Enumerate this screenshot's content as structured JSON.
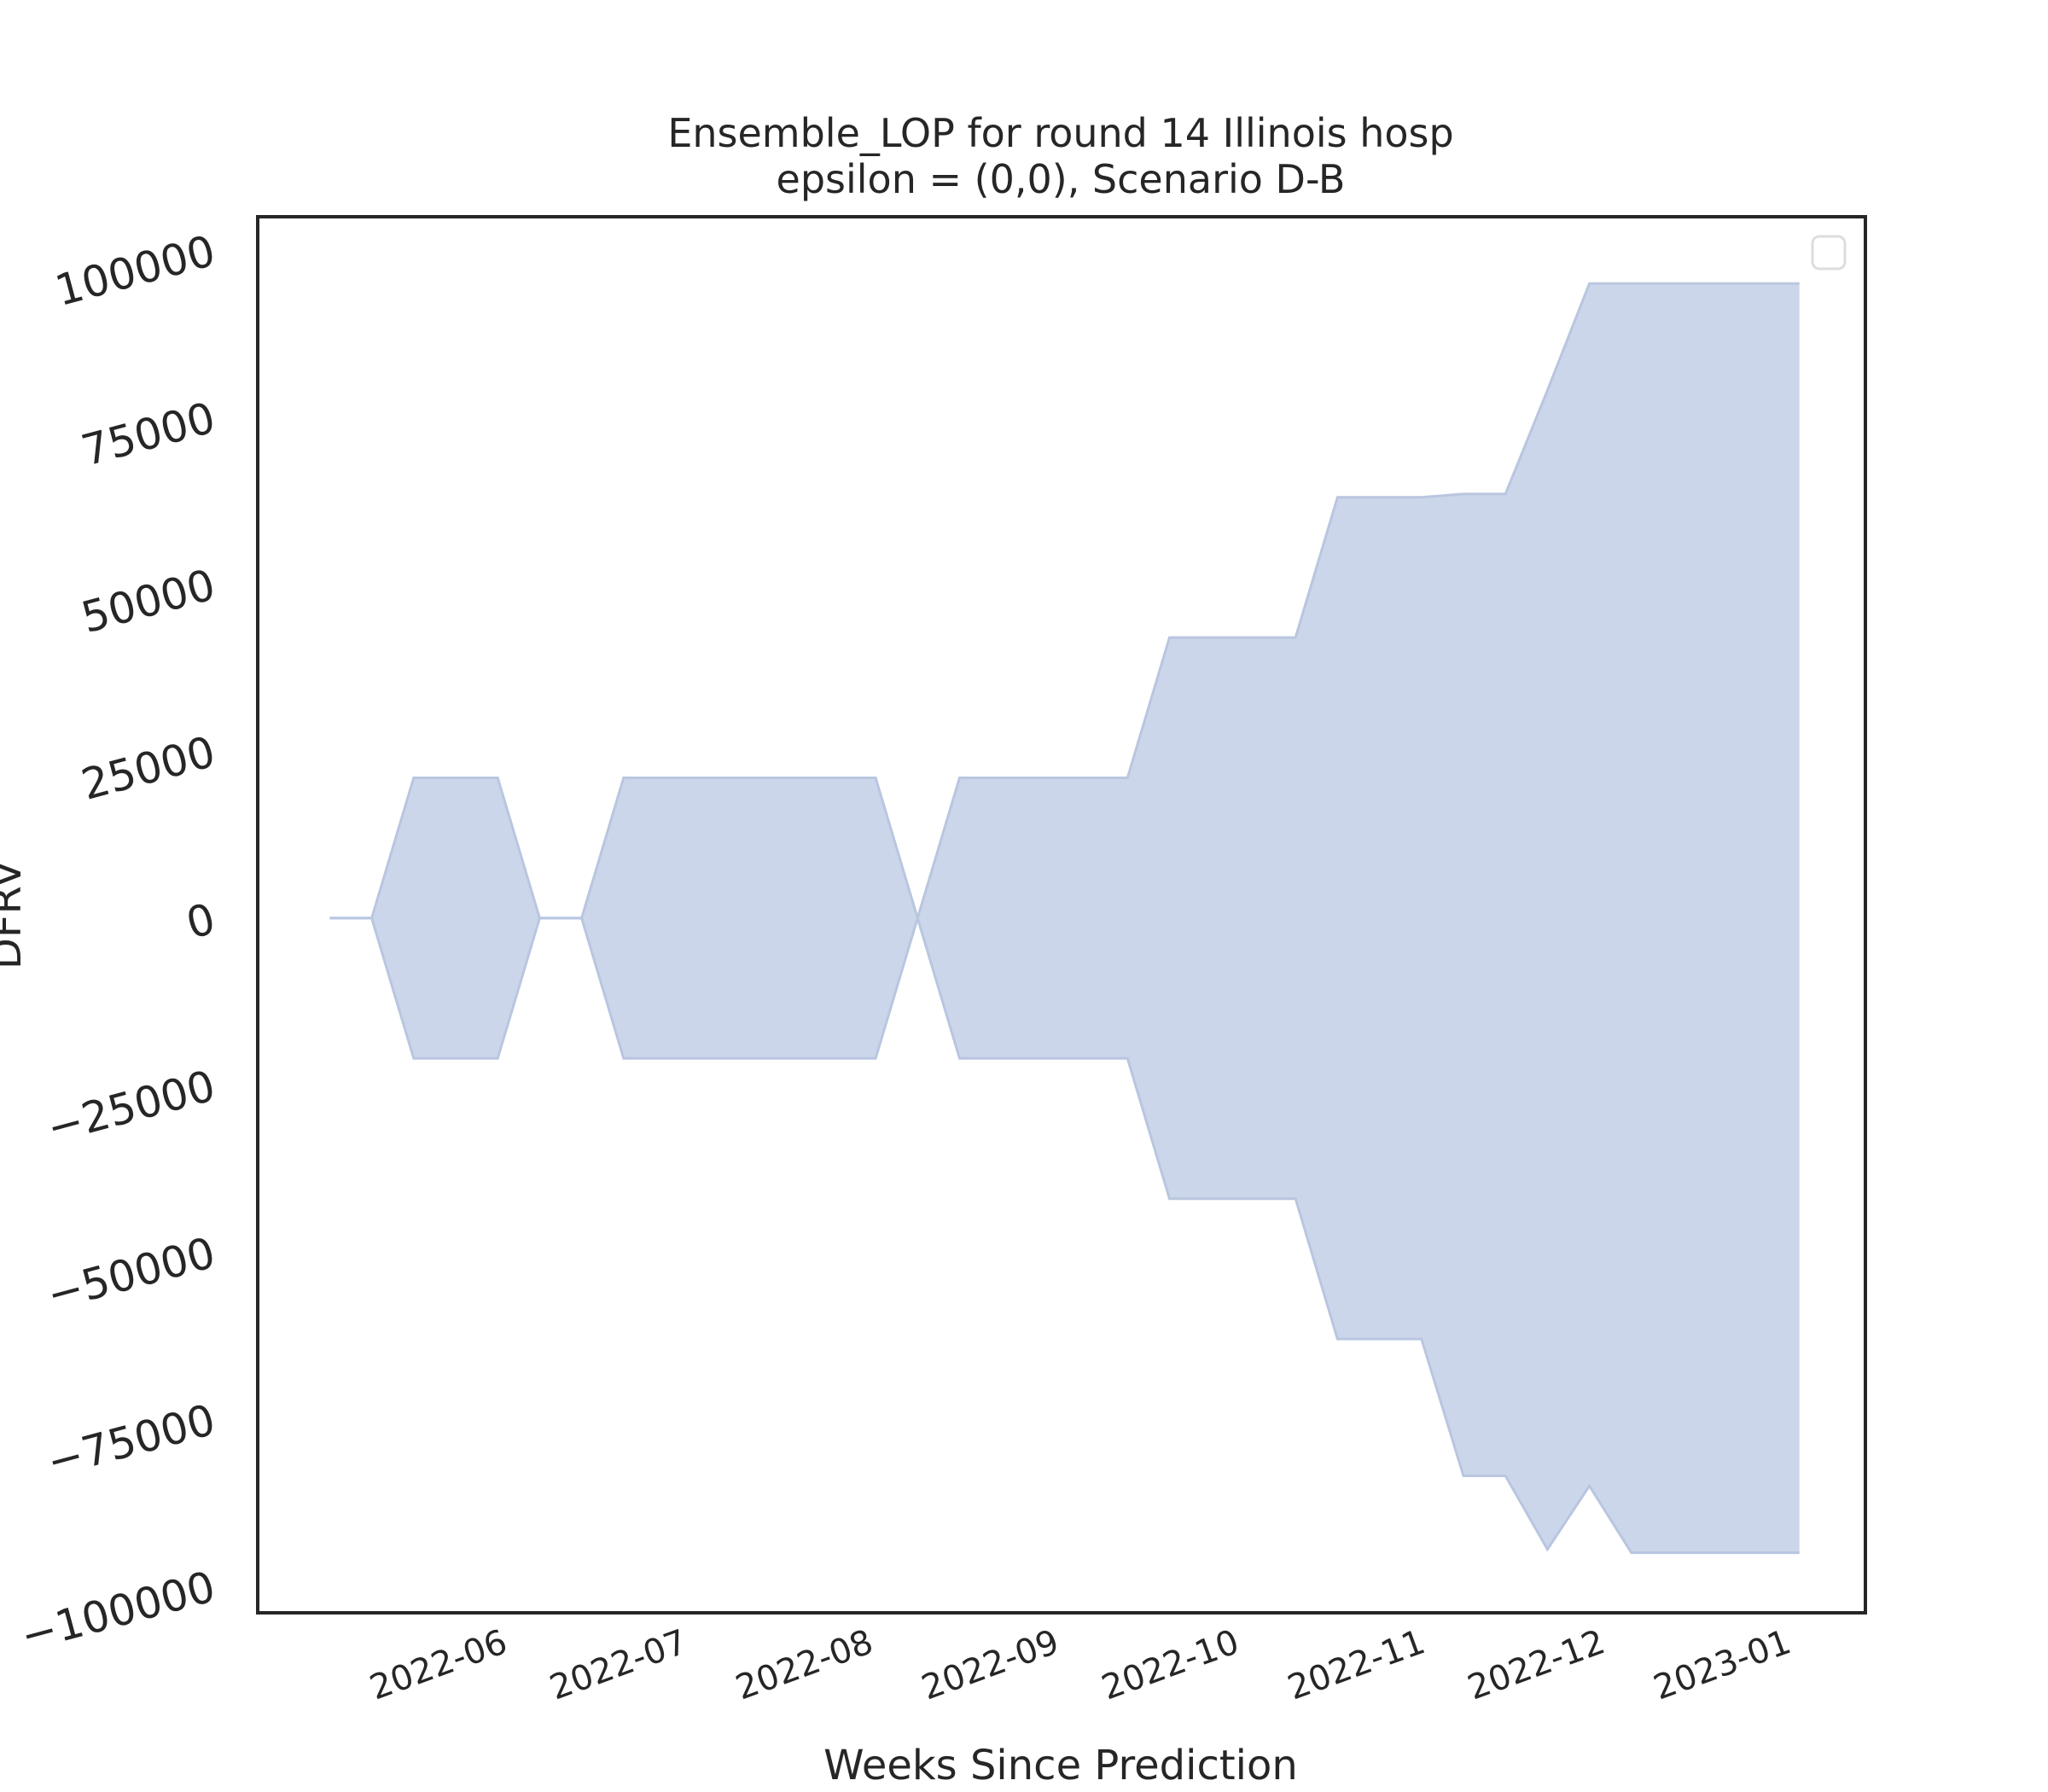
{
  "chart_data": {
    "type": "area",
    "title_line1": "Ensemble_LOP for round 14 Illinois hosp",
    "title_line2": "epsilon = (0,0), Scenario D-B",
    "xlabel": "Weeks Since Prediction",
    "ylabel": "DFRV",
    "ylim": [
      -104000,
      105000
    ],
    "xlim": [
      "2022-05-02",
      "2023-01-25"
    ],
    "yticks": [
      100000,
      75000,
      50000,
      25000,
      0,
      -25000,
      -50000,
      -75000,
      -100000
    ],
    "ytick_labels": [
      "100000",
      "75000",
      "50000",
      "25000",
      "0",
      "−25000",
      "−50000",
      "−75000",
      "−100000"
    ],
    "xticks": [
      "2022-06-01",
      "2022-07-01",
      "2022-08-01",
      "2022-09-01",
      "2022-10-01",
      "2022-11-01",
      "2022-12-01",
      "2023-01-01"
    ],
    "xtick_labels": [
      "2022-06",
      "2022-07",
      "2022-08",
      "2022-09",
      "2022-10",
      "2022-11",
      "2022-12",
      "2023-01"
    ],
    "legend": "top-right (empty)",
    "grid": false,
    "fill_color": "#ccd6ea",
    "edge_color": "#b9c6e0",
    "series": [
      {
        "x": [
          "2022-05-14",
          "2022-05-21",
          "2022-05-28",
          "2022-06-04",
          "2022-06-11",
          "2022-06-18",
          "2022-06-25",
          "2022-07-02",
          "2022-07-09",
          "2022-07-16",
          "2022-07-23",
          "2022-07-30",
          "2022-08-06",
          "2022-08-13",
          "2022-08-20",
          "2022-08-27",
          "2022-09-03",
          "2022-09-10",
          "2022-09-17",
          "2022-09-24",
          "2022-10-01",
          "2022-10-08",
          "2022-10-15",
          "2022-10-22",
          "2022-10-29",
          "2022-11-05",
          "2022-11-12",
          "2022-11-19",
          "2022-11-26",
          "2022-12-03",
          "2022-12-10",
          "2022-12-17",
          "2022-12-24",
          "2022-12-31",
          "2023-01-07",
          "2023-01-14"
        ],
        "upper": [
          0,
          0,
          21000,
          21000,
          21000,
          0,
          0,
          21000,
          21000,
          21000,
          21000,
          21000,
          21000,
          21000,
          0,
          21000,
          21000,
          21000,
          21000,
          21000,
          42000,
          42000,
          42000,
          42000,
          63000,
          63000,
          63000,
          63500,
          63500,
          79000,
          95000,
          95000,
          95000,
          95000,
          95000,
          95000
        ],
        "lower": [
          0,
          0,
          -21000,
          -21000,
          -21000,
          0,
          0,
          -21000,
          -21000,
          -21000,
          -21000,
          -21000,
          -21000,
          -21000,
          0,
          -21000,
          -21000,
          -21000,
          -21000,
          -21000,
          -42000,
          -42000,
          -42000,
          -42000,
          -63000,
          -63000,
          -63000,
          -83500,
          -83500,
          -94500,
          -85000,
          -95000,
          -95000,
          -95000,
          -95000,
          -95000
        ]
      }
    ]
  }
}
